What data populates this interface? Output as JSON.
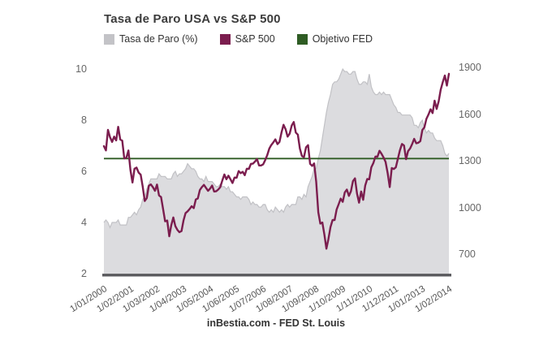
{
  "title": "Tasa de Paro USA vs S&P 500",
  "footer": "inBestia.com - FED St. Louis",
  "colors": {
    "background": "#ffffff",
    "title_text": "#3c3c3c",
    "tick_text": "#666666",
    "x_tick_text": "#555555",
    "unemployment_area_fill": "#dcdcdf",
    "unemployment_area_edge": "#c1c1c5",
    "unemployment_legend_swatch": "#c3c3c7",
    "sp500_line": "#7b1d4e",
    "fed_target_line": "#2f5c24",
    "bottom_axis_line": "#58585c"
  },
  "legend": {
    "items": [
      {
        "label": "Tasa de Paro (%)",
        "color": "#c3c3c7"
      },
      {
        "label": "S&P 500",
        "color": "#7b1d4e"
      },
      {
        "label": "Objetivo FED",
        "color": "#2f5c24"
      }
    ]
  },
  "chart_data": {
    "type": "line",
    "title": "Tasa de Paro USA vs S&P 500",
    "xlabel": "",
    "ylabel_left": "",
    "ylabel_right": "",
    "grid": false,
    "legend_position": "top",
    "categories": [
      "1/01/2000",
      "1/02/2001",
      "1/03/2002",
      "1/04/2003",
      "1/05/2004",
      "1/06/2005",
      "1/07/2006",
      "1/08/2007",
      "1/09/2008",
      "1/10/2009",
      "1/11/2010",
      "1/12/2011",
      "1/01/2013",
      "1/02/2014"
    ],
    "x_tick_month_indices": [
      0,
      13,
      26,
      39,
      52,
      65,
      78,
      91,
      104,
      117,
      130,
      143,
      156,
      169
    ],
    "x_months_total": 170,
    "y_left": {
      "ticks": [
        2,
        4,
        6,
        8,
        10
      ],
      "range": [
        2,
        10
      ]
    },
    "y_right": {
      "ticks": [
        700,
        1000,
        1300,
        1600,
        1900
      ],
      "range": [
        700,
        1900
      ]
    },
    "series": [
      {
        "name": "Tasa de Paro (%)",
        "axis": "left",
        "style": "area",
        "color": "#dcdcdf",
        "values": [
          4.0,
          4.1,
          4.0,
          3.8,
          4.0,
          4.0,
          4.0,
          4.1,
          3.9,
          3.9,
          3.9,
          3.9,
          4.2,
          4.2,
          4.3,
          4.4,
          4.3,
          4.5,
          4.6,
          4.9,
          5.0,
          5.3,
          5.5,
          5.7,
          5.7,
          5.7,
          5.7,
          5.9,
          5.8,
          5.8,
          5.8,
          5.7,
          5.7,
          5.7,
          5.9,
          6.0,
          5.8,
          5.9,
          5.9,
          6.0,
          6.1,
          6.3,
          6.2,
          6.1,
          6.1,
          6.0,
          5.8,
          5.7,
          5.7,
          5.6,
          5.8,
          5.6,
          5.6,
          5.6,
          5.5,
          5.4,
          5.4,
          5.5,
          5.4,
          5.4,
          5.3,
          5.4,
          5.2,
          5.2,
          5.1,
          5.0,
          5.0,
          4.9,
          5.0,
          5.0,
          5.0,
          4.9,
          4.7,
          4.8,
          4.7,
          4.7,
          4.6,
          4.6,
          4.7,
          4.7,
          4.5,
          4.4,
          4.5,
          4.4,
          4.6,
          4.5,
          4.4,
          4.5,
          4.4,
          4.6,
          4.7,
          4.6,
          4.7,
          4.7,
          4.7,
          5.0,
          5.0,
          4.9,
          5.1,
          5.0,
          5.4,
          5.6,
          5.8,
          6.1,
          6.1,
          6.5,
          6.8,
          7.3,
          7.8,
          8.3,
          8.7,
          9.0,
          9.4,
          9.5,
          9.5,
          9.6,
          9.8,
          10.0,
          9.9,
          9.9,
          9.8,
          9.8,
          9.9,
          9.9,
          9.6,
          9.4,
          9.4,
          9.5,
          9.5,
          9.4,
          9.8,
          9.3,
          9.1,
          9.0,
          9.0,
          9.1,
          9.0,
          9.1,
          9.0,
          9.0,
          9.0,
          8.8,
          8.6,
          8.5,
          8.3,
          8.3,
          8.2,
          8.2,
          8.2,
          8.2,
          8.2,
          8.1,
          7.8,
          7.8,
          7.7,
          7.9,
          8.0,
          7.7,
          7.5,
          7.6,
          7.5,
          7.5,
          7.3,
          7.2,
          7.2,
          7.2,
          7.0,
          6.7,
          6.6,
          6.7
        ]
      },
      {
        "name": "S&P 500",
        "axis": "right",
        "style": "line",
        "color": "#7b1d4e",
        "values": [
          1394,
          1366,
          1499,
          1452,
          1421,
          1455,
          1431,
          1518,
          1437,
          1429,
          1315,
          1320,
          1366,
          1240,
          1160,
          1249,
          1256,
          1224,
          1211,
          1134,
          1041,
          1060,
          1139,
          1148,
          1130,
          1107,
          1147,
          1077,
          1067,
          990,
          911,
          916,
          815,
          886,
          936,
          880,
          856,
          841,
          848,
          917,
          964,
          975,
          990,
          1008,
          996,
          1051,
          1058,
          1112,
          1131,
          1145,
          1126,
          1107,
          1121,
          1141,
          1102,
          1104,
          1115,
          1130,
          1174,
          1212,
          1181,
          1204,
          1181,
          1157,
          1192,
          1191,
          1234,
          1220,
          1229,
          1207,
          1249,
          1248,
          1280,
          1281,
          1295,
          1311,
          1270,
          1270,
          1277,
          1304,
          1336,
          1378,
          1401,
          1418,
          1438,
          1407,
          1421,
          1482,
          1531,
          1503,
          1455,
          1474,
          1527,
          1549,
          1481,
          1468,
          1379,
          1331,
          1323,
          1386,
          1400,
          1280,
          1267,
          1283,
          1166,
          969,
          896,
          903,
          826,
          735,
          798,
          873,
          919,
          919,
          987,
          1021,
          1057,
          1036,
          1096,
          1115,
          1074,
          1104,
          1169,
          1187,
          1089,
          1031,
          1102,
          1049,
          1141,
          1183,
          1181,
          1258,
          1286,
          1327,
          1326,
          1364,
          1345,
          1321,
          1292,
          1219,
          1131,
          1253,
          1247,
          1258,
          1312,
          1366,
          1408,
          1398,
          1310,
          1362,
          1379,
          1407,
          1441,
          1412,
          1416,
          1426,
          1498,
          1515,
          1569,
          1598,
          1631,
          1606,
          1686,
          1633,
          1682,
          1757,
          1806,
          1848,
          1783,
          1859
        ]
      },
      {
        "name": "Objetivo FED",
        "axis": "left",
        "style": "hline",
        "color": "#2f5c24",
        "value": 6.5
      }
    ]
  }
}
